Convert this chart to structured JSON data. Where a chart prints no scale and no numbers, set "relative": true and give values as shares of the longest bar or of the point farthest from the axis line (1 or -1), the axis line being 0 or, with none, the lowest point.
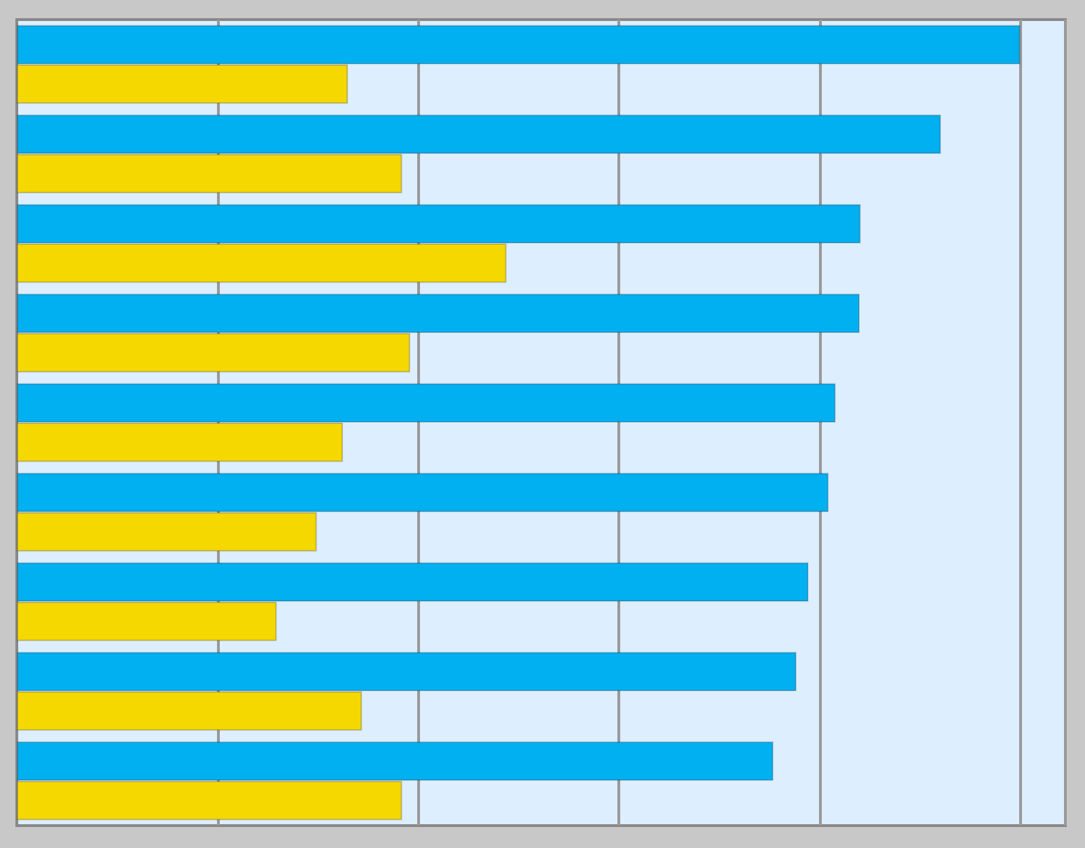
{
  "chart_data": {
    "type": "bar",
    "orientation": "horizontal",
    "relative": true,
    "grid": "x",
    "categories": [
      null,
      null,
      null,
      null,
      null,
      null,
      null,
      null,
      null
    ],
    "series": [
      {
        "color": "#00b0f0",
        "values": [
          1,
          0.921,
          0.841,
          0.84,
          0.816,
          0.809,
          0.789,
          0.777,
          0.754
        ]
      },
      {
        "color": "#f5d800",
        "values": [
          0.33,
          0.384,
          0.488,
          0.392,
          0.325,
          0.299,
          0.259,
          0.344,
          0.384
        ]
      }
    ]
  }
}
